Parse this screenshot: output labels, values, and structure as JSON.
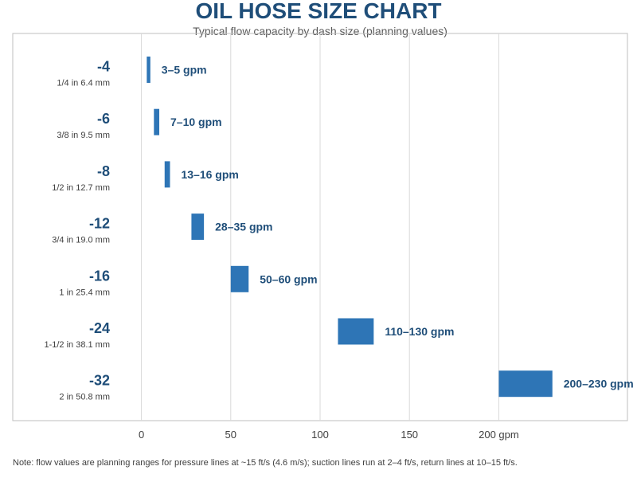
{
  "chart_data": {
    "type": "bar",
    "title": "OIL HOSE SIZE CHART",
    "subtitle": "Typical flow capacity by dash size (planning values)",
    "note": "Note: flow values are planning ranges for pressure lines at ~15 ft/s (4.6 m/s); suction lines run at 2–4 ft/s, return lines at 10–15 ft/s.",
    "xlim": [
      -72,
      272
    ],
    "xticks": [
      {
        "value": 0,
        "label": "0"
      },
      {
        "value": 50,
        "label": "50"
      },
      {
        "value": 100,
        "label": "100"
      },
      {
        "value": 150,
        "label": "150"
      },
      {
        "value": 200,
        "label": "200 gpm"
      }
    ],
    "grid": true,
    "colors": {
      "bar": "#2e75b6",
      "title": "#1f4e79",
      "subtitle": "#595959",
      "size_label": "#404040",
      "grid": "#d9d9d9",
      "frame": "#bfbfbf",
      "tick": "#404040",
      "note": "#404040"
    },
    "rows": [
      {
        "dash": "-4",
        "size": "1/4 in  6.4 mm",
        "min": 3,
        "max": 5,
        "label": "3–5 gpm"
      },
      {
        "dash": "-6",
        "size": "3/8 in  9.5 mm",
        "min": 7,
        "max": 10,
        "label": "7–10 gpm"
      },
      {
        "dash": "-8",
        "size": "1/2 in  12.7 mm",
        "min": 13,
        "max": 16,
        "label": "13–16 gpm"
      },
      {
        "dash": "-12",
        "size": "3/4 in  19.0 mm",
        "min": 28,
        "max": 35,
        "label": "28–35 gpm"
      },
      {
        "dash": "-16",
        "size": "1 in  25.4 mm",
        "min": 50,
        "max": 60,
        "label": "50–60 gpm"
      },
      {
        "dash": "-24",
        "size": "1-1/2 in  38.1 mm",
        "min": 110,
        "max": 130,
        "label": "110–130 gpm"
      },
      {
        "dash": "-32",
        "size": "2 in  50.8 mm",
        "min": 200,
        "max": 230,
        "label": "200–230 gpm"
      }
    ]
  }
}
